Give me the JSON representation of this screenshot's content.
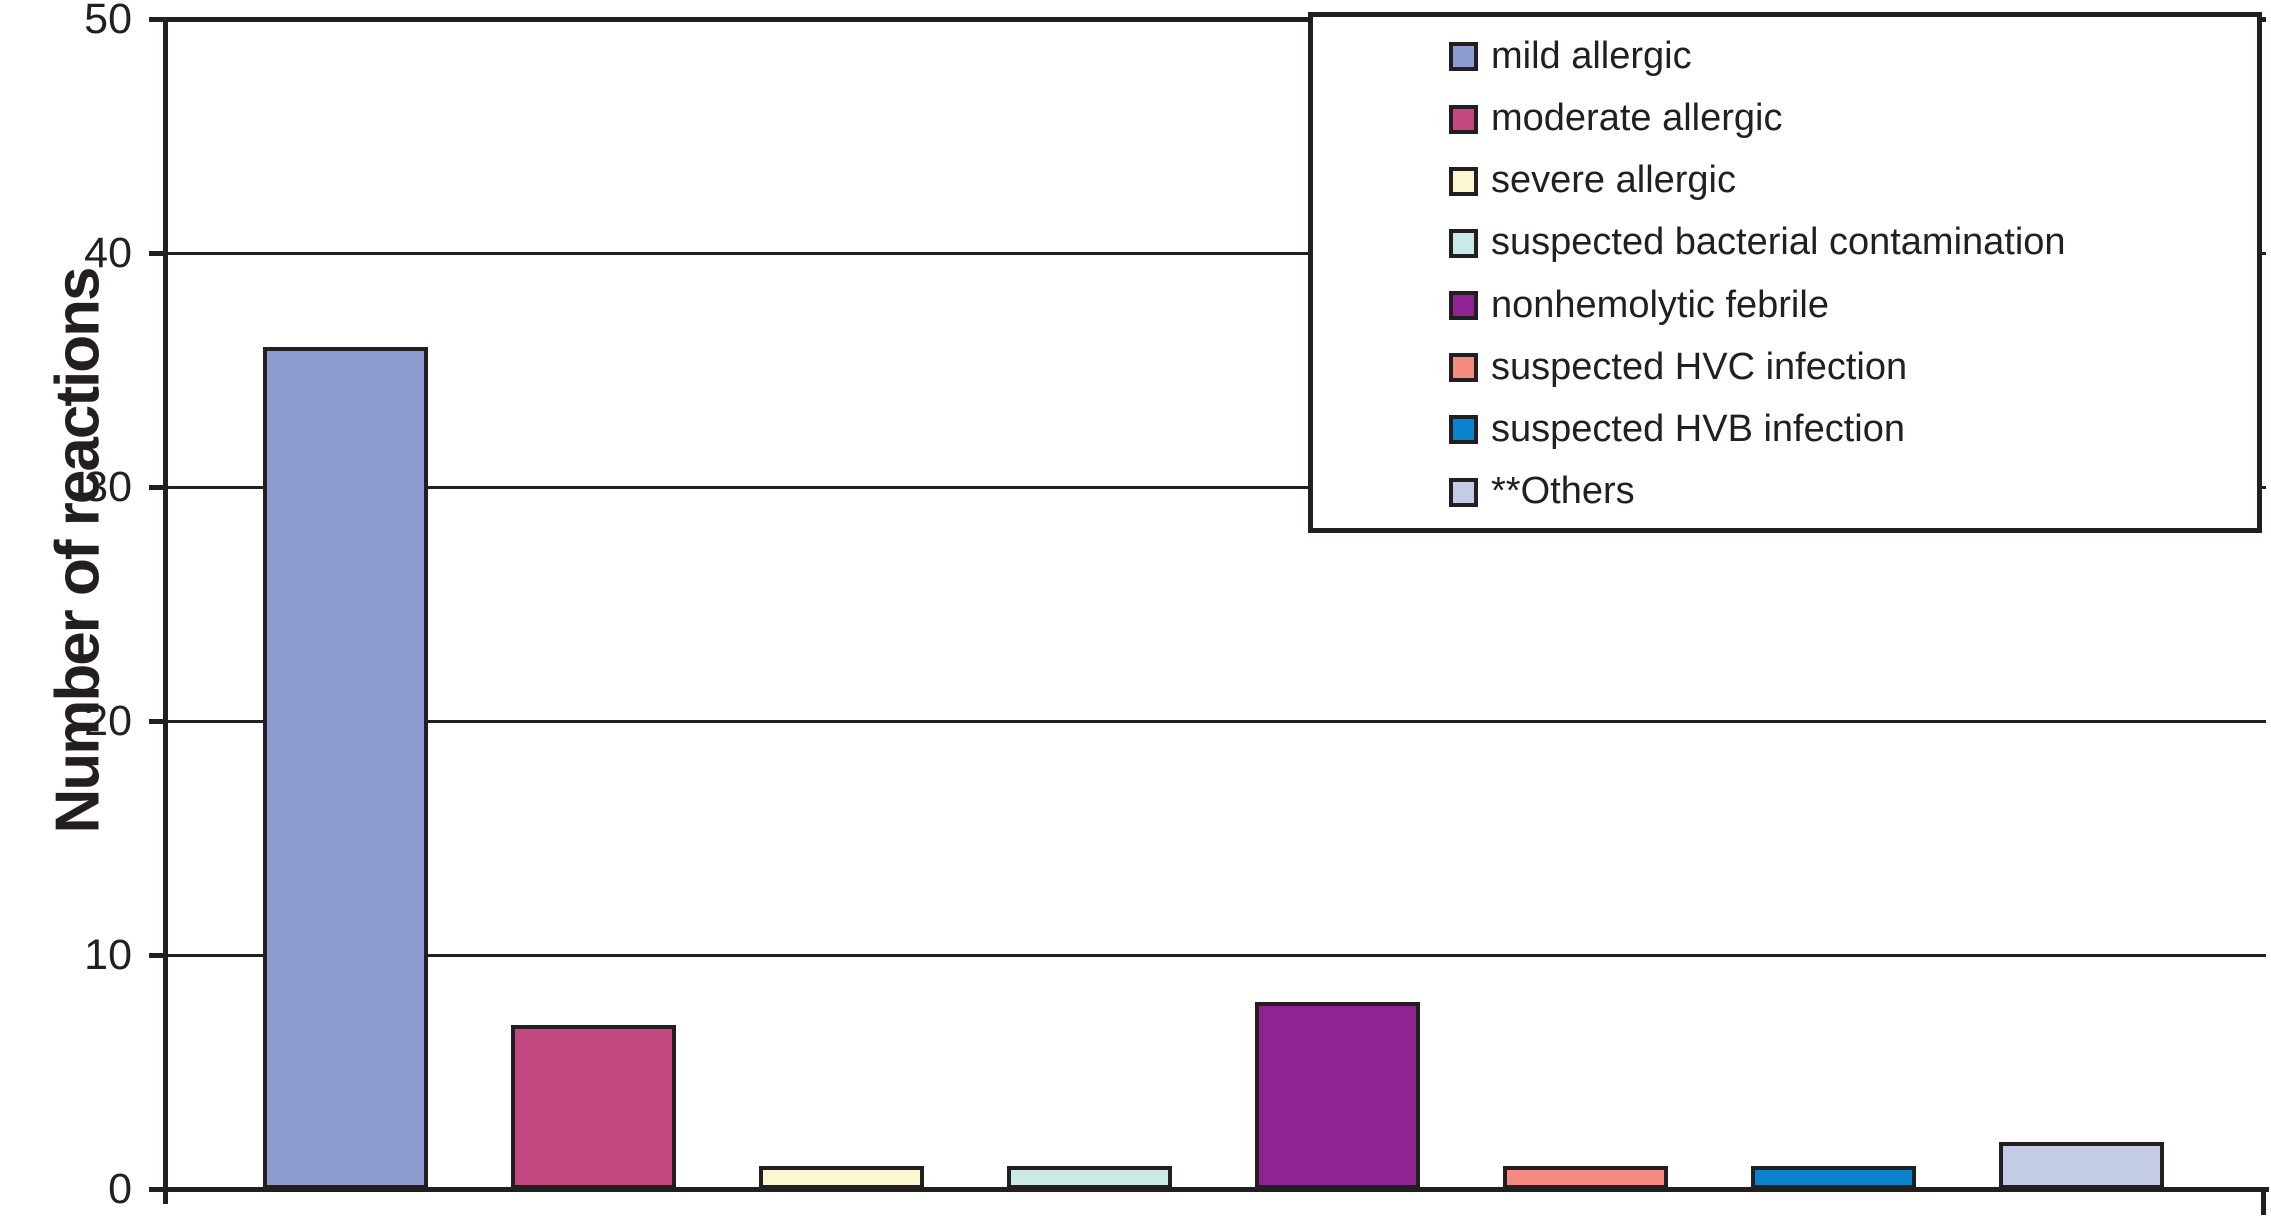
{
  "figure": {
    "background": "#FFFFFF",
    "axis_color": "#231F20",
    "text_color": "#231F20"
  },
  "chart_data": {
    "type": "bar",
    "title": "",
    "xlabel": "",
    "ylabel": "Number of reactions",
    "ylim": [
      0,
      50
    ],
    "yticks": [
      0,
      10,
      20,
      30,
      40,
      50
    ],
    "grid": "horizontal black gridlines at each y tick",
    "legend_position": "top-right inside plot, opaque white box with black border",
    "x_tick_labels": [],
    "bar_outline_color": "#231F20",
    "series": [
      {
        "label": "mild allergic",
        "value": 36,
        "color": "#8E9CD0"
      },
      {
        "label": "moderate allergic",
        "value": 7,
        "color": "#C44880"
      },
      {
        "label": "severe allergic",
        "value": 1,
        "color": "#FBF7D0"
      },
      {
        "label": "suspected bacterial contamination",
        "value": 1,
        "color": "#C9EAE6"
      },
      {
        "label": "nonhemolytic febrile",
        "value": 8,
        "color": "#8F2391"
      },
      {
        "label": "suspected HVC infection",
        "value": 1,
        "color": "#F48A80"
      },
      {
        "label": "suspected HVB infection",
        "value": 1,
        "color": "#0984CC"
      },
      {
        "label": "**Others",
        "value": 2,
        "color": "#C4CBE7"
      }
    ]
  }
}
